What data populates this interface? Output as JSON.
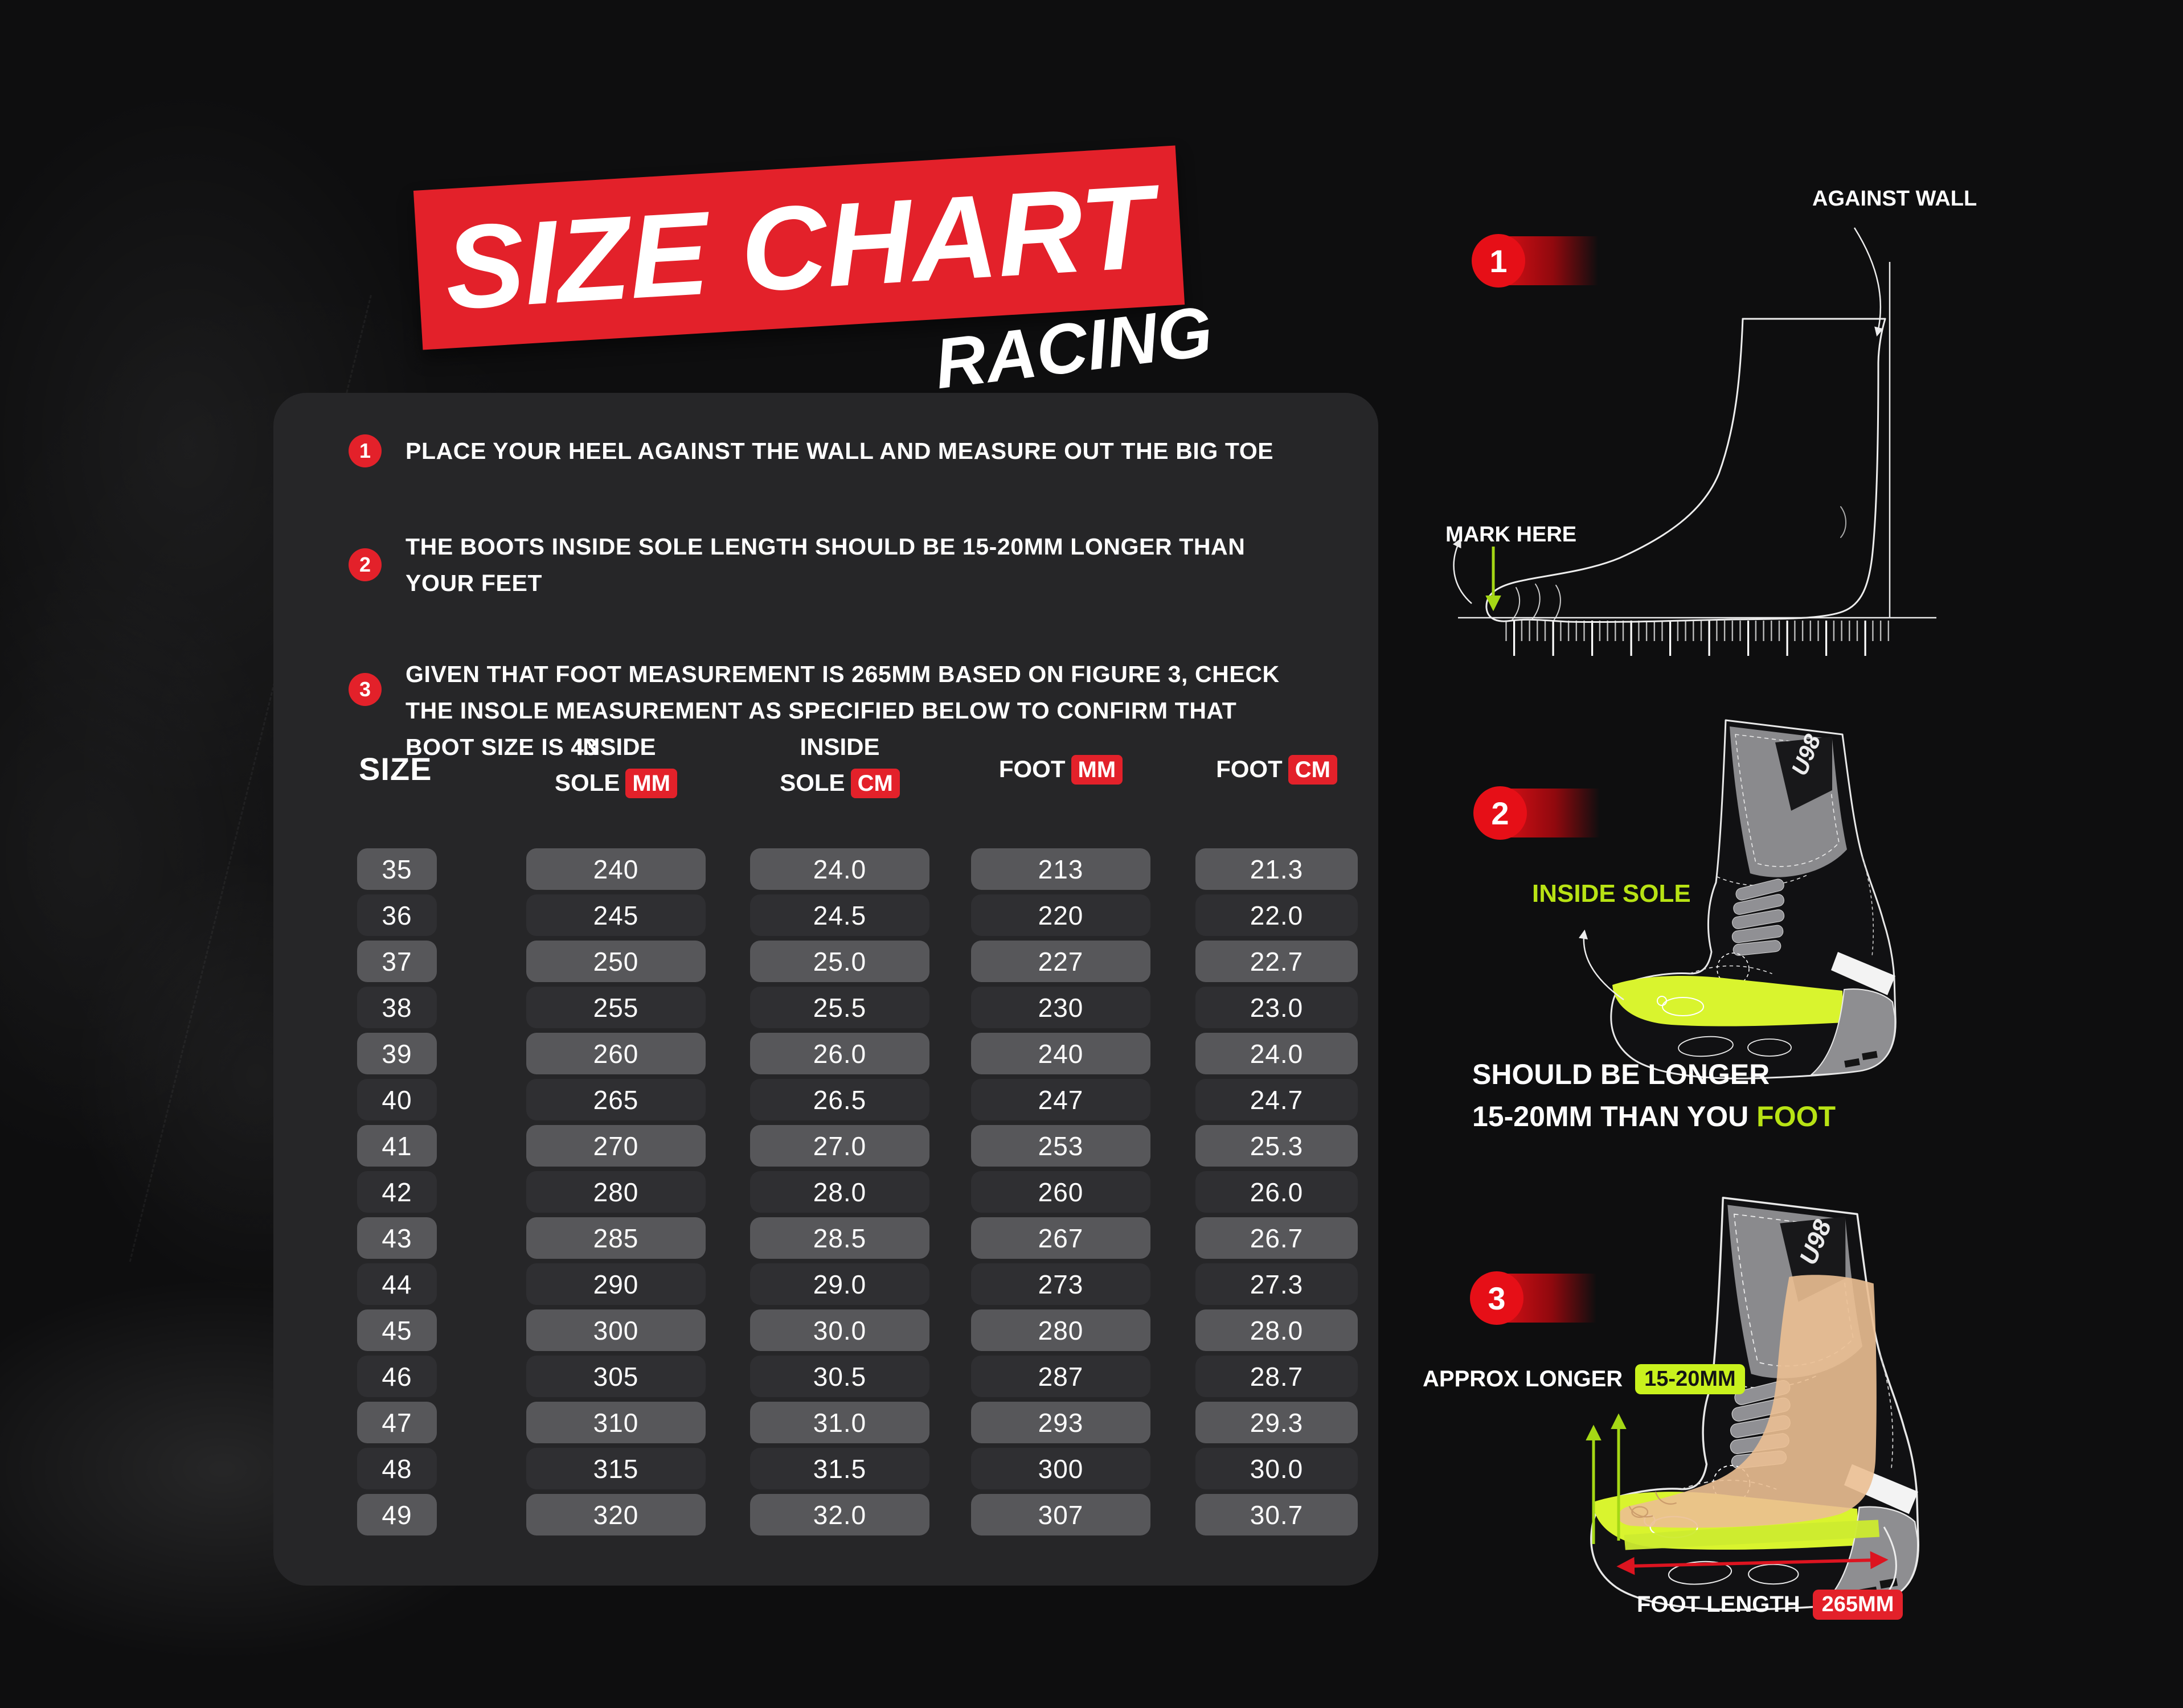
{
  "title": {
    "main": "SIZE CHART",
    "sub": "RACING"
  },
  "instructions": [
    {
      "num": "1",
      "text": "PLACE YOUR HEEL AGAINST THE WALL AND MEASURE OUT THE BIG TOE"
    },
    {
      "num": "2",
      "text": "THE BOOTS INSIDE SOLE LENGTH SHOULD BE 15-20MM LONGER THAN YOUR FEET"
    },
    {
      "num": "3",
      "text": "GIVEN THAT FOOT MEASUREMENT IS 265MM BASED ON FIGURE 3, CHECK THE INSOLE MEASUREMENT AS SPECIFIED BELOW TO CONFIRM THAT BOOT SIZE IS 43"
    }
  ],
  "table": {
    "headers": {
      "size": "SIZE",
      "col2": {
        "top": "INSIDE",
        "label": "SOLE",
        "badge": "MM"
      },
      "col3": {
        "top": "INSIDE",
        "label": "SOLE",
        "badge": "CM"
      },
      "col4": {
        "label": "FOOT",
        "badge": "MM"
      },
      "col5": {
        "label": "FOOT",
        "badge": "CM"
      }
    }
  },
  "figures": {
    "fig1": {
      "num": "1",
      "against_wall": "AGAINST WALL",
      "mark_here": "MARK HERE"
    },
    "fig2": {
      "num": "2",
      "inside_sole": "INSIDE SOLE",
      "caption_line1": "SHOULD BE LONGER",
      "caption_line2": "15-20MM THAN YOU ",
      "caption_highlight": "FOOT",
      "boot_logo": "U98"
    },
    "fig3": {
      "num": "3",
      "approx_label": "APPROX LONGER",
      "approx_badge": "15-20MM",
      "foot_length_label": "FOOT LENGTH",
      "foot_length_badge": "265MM",
      "boot_logo": "U98"
    }
  },
  "colors": {
    "red": "#e3212a",
    "lime_text": "#b8e314",
    "lime_badge": "#c9f21d",
    "lime_sole": "#d9f42e",
    "tan_foot": "#ebbf92",
    "panel": "#262628",
    "row_light": "#57575a",
    "row_dark": "#2f2f32",
    "background": "#0e0e0f"
  },
  "chart_data": {
    "type": "table",
    "title": "SIZE CHART",
    "subtitle": "RACING",
    "columns": [
      "SIZE",
      "INSIDE SOLE MM",
      "INSIDE SOLE CM",
      "FOOT MM",
      "FOOT CM"
    ],
    "rows": [
      [
        "35",
        "240",
        "24.0",
        "213",
        "21.3"
      ],
      [
        "36",
        "245",
        "24.5",
        "220",
        "22.0"
      ],
      [
        "37",
        "250",
        "25.0",
        "227",
        "22.7"
      ],
      [
        "38",
        "255",
        "25.5",
        "230",
        "23.0"
      ],
      [
        "39",
        "260",
        "26.0",
        "240",
        "24.0"
      ],
      [
        "40",
        "265",
        "26.5",
        "247",
        "24.7"
      ],
      [
        "41",
        "270",
        "27.0",
        "253",
        "25.3"
      ],
      [
        "42",
        "280",
        "28.0",
        "260",
        "26.0"
      ],
      [
        "43",
        "285",
        "28.5",
        "267",
        "26.7"
      ],
      [
        "44",
        "290",
        "29.0",
        "273",
        "27.3"
      ],
      [
        "45",
        "300",
        "30.0",
        "280",
        "28.0"
      ],
      [
        "46",
        "305",
        "30.5",
        "287",
        "28.7"
      ],
      [
        "47",
        "310",
        "31.0",
        "293",
        "29.3"
      ],
      [
        "48",
        "315",
        "31.5",
        "300",
        "30.0"
      ],
      [
        "49",
        "320",
        "32.0",
        "307",
        "30.7"
      ]
    ]
  }
}
